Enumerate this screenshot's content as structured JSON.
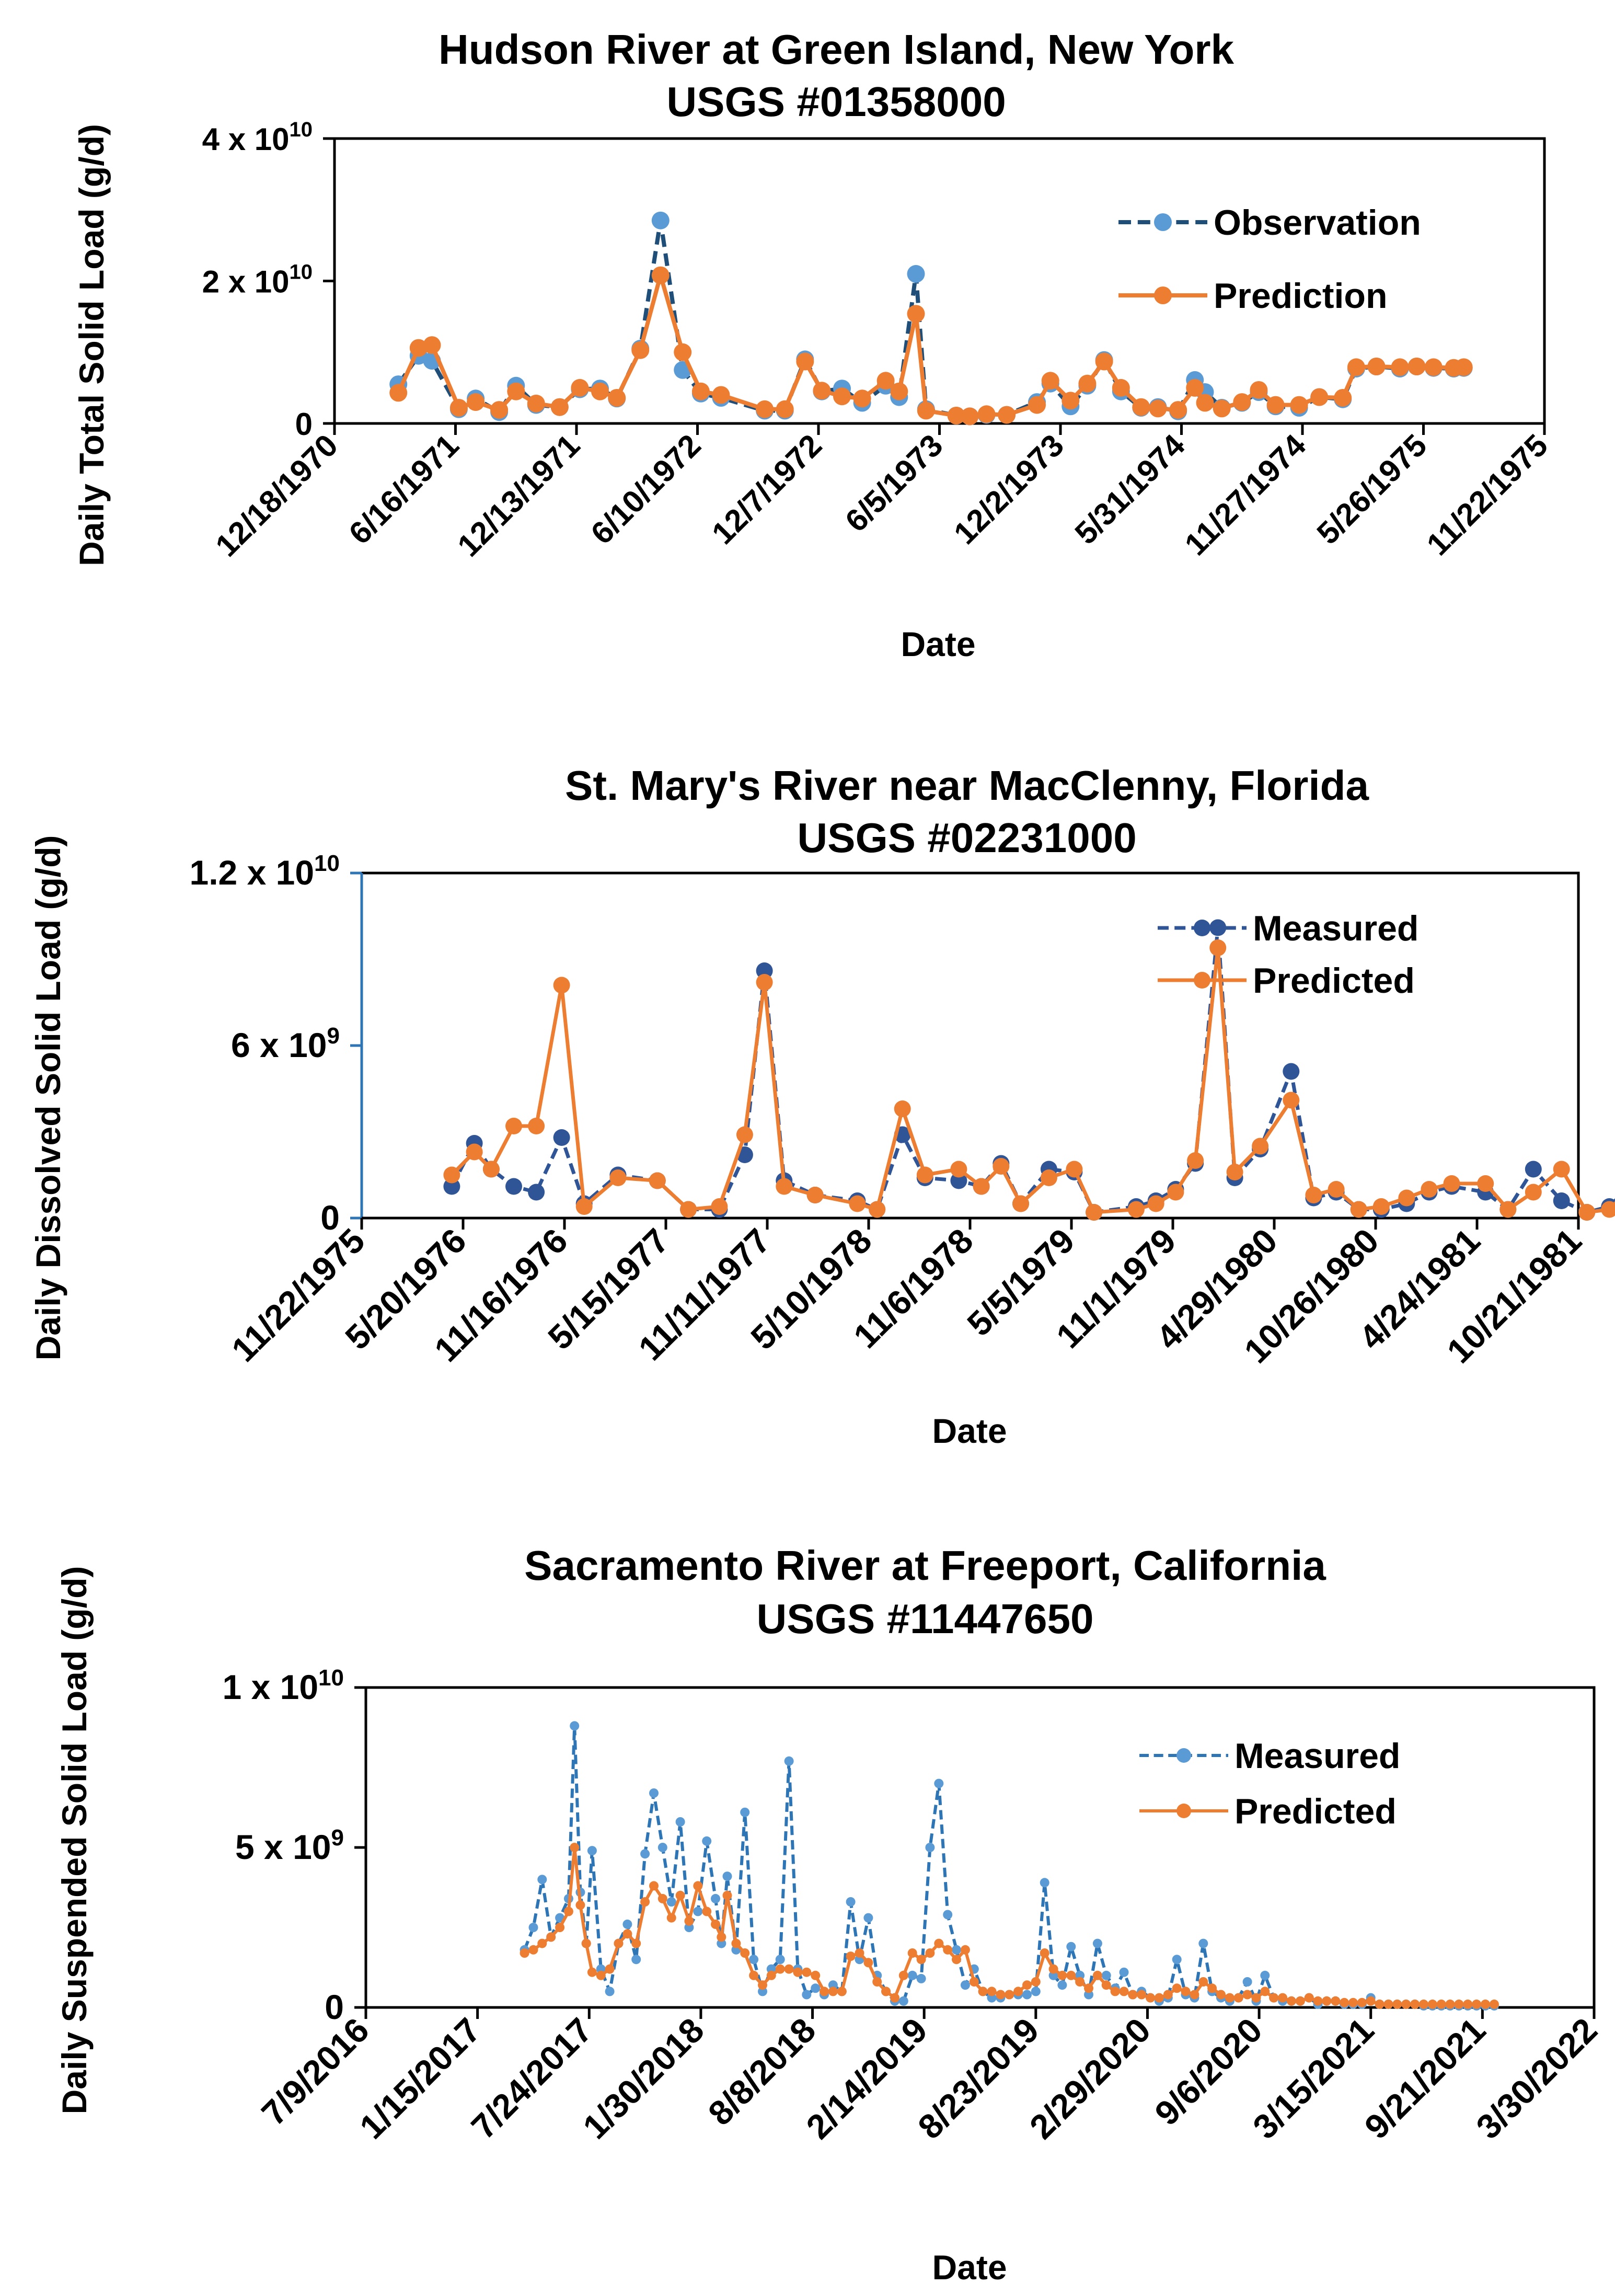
{
  "colors": {
    "observed_dark": "#1F4E79",
    "observed_light": "#5B9BD5",
    "measured_dark": "#2F5597",
    "predicted": "#ED7D31"
  },
  "chart_data": [
    {
      "type": "line",
      "title": "Hudson River at Green Island, New York",
      "subtitle": "USGS #01358000",
      "xlabel": "Date",
      "ylabel": "Daily Total Solid Load (g/d)",
      "xlim": [
        0,
        1800
      ],
      "x_tick_values": [
        0,
        180,
        360,
        540,
        720,
        900,
        1080,
        1260,
        1440,
        1620,
        1800
      ],
      "x_tick_labels": [
        "12/18/1970",
        "6/16/1971",
        "12/13/1971",
        "6/10/1972",
        "12/7/1972",
        "6/5/1973",
        "12/2/1973",
        "5/31/1974",
        "11/27/1974",
        "5/26/1975",
        "11/22/1975"
      ],
      "ylim": [
        0,
        40000000000
      ],
      "y_ticks": [
        {
          "value": 0,
          "base": "0",
          "exp": ""
        },
        {
          "value": 20000000000,
          "base": "2 x 10",
          "exp": "10"
        },
        {
          "value": 40000000000,
          "base": "4 x 10",
          "exp": "10"
        }
      ],
      "legend": {
        "position": "top-right",
        "entries": [
          "Observation",
          "Prediction"
        ]
      },
      "x": [
        95,
        125,
        145,
        185,
        210,
        245,
        270,
        300,
        335,
        365,
        395,
        420,
        455,
        485,
        518,
        545,
        575,
        640,
        670,
        700,
        725,
        755,
        785,
        820,
        840,
        865,
        880,
        925,
        945,
        970,
        1000,
        1045,
        1065,
        1095,
        1120,
        1145,
        1170,
        1200,
        1225,
        1255,
        1280,
        1295,
        1320,
        1350,
        1375,
        1400,
        1435,
        1465,
        1500,
        1520,
        1550,
        1585,
        1610,
        1635,
        1665,
        1680
      ],
      "series": [
        {
          "name": "Observation",
          "color": "#5B9BD5",
          "line_color": "#1F4E79",
          "dash": true,
          "values": [
            5500000000,
            9500000000,
            8800000000,
            2000000000,
            3500000000,
            1600000000,
            5300000000,
            2600000000,
            2300000000,
            4800000000,
            4900000000,
            3500000000,
            10500000000,
            28500000000,
            7500000000,
            4200000000,
            3600000000,
            1800000000,
            1800000000,
            9000000000,
            4500000000,
            4900000000,
            2900000000,
            5300000000,
            3700000000,
            21000000000,
            2000000000,
            1100000000,
            1000000000,
            1200000000,
            1200000000,
            3000000000,
            5600000000,
            2400000000,
            5300000000,
            8900000000,
            4500000000,
            2200000000,
            2300000000,
            1700000000,
            6100000000,
            4400000000,
            2200000000,
            2900000000,
            4400000000,
            2400000000,
            2200000000,
            3700000000,
            3400000000,
            7700000000,
            8000000000,
            7700000000,
            8000000000,
            7800000000,
            7700000000,
            7800000000
          ]
        },
        {
          "name": "Prediction",
          "color": "#ED7D31",
          "line_color": "#ED7D31",
          "dash": false,
          "values": [
            4300000000,
            10600000000,
            11000000000,
            2200000000,
            3000000000,
            1900000000,
            4500000000,
            2800000000,
            2300000000,
            5000000000,
            4500000000,
            3600000000,
            10300000000,
            20800000000,
            10000000000,
            4500000000,
            4000000000,
            2000000000,
            2000000000,
            8700000000,
            4600000000,
            3800000000,
            3500000000,
            6000000000,
            4500000000,
            15400000000,
            1800000000,
            1100000000,
            1000000000,
            1300000000,
            1200000000,
            2600000000,
            6000000000,
            3200000000,
            5600000000,
            8700000000,
            5000000000,
            2300000000,
            2100000000,
            1900000000,
            5000000000,
            2900000000,
            2100000000,
            3000000000,
            4700000000,
            2600000000,
            2600000000,
            3700000000,
            3600000000,
            7900000000,
            8000000000,
            7900000000,
            8000000000,
            7900000000,
            7800000000,
            7900000000
          ]
        }
      ]
    },
    {
      "type": "line",
      "title": "St. Mary's River near MacClenny, Florida",
      "subtitle": "USGS #02231000",
      "xlabel": "Date",
      "ylabel": "Daily Dissolved Solid Load (g/d)",
      "xlim": [
        0,
        2160
      ],
      "x_tick_values": [
        0,
        180,
        360,
        540,
        720,
        900,
        1080,
        1260,
        1440,
        1620,
        1800,
        1980,
        2160
      ],
      "x_tick_labels": [
        "11/22/1975",
        "5/20/1976",
        "11/16/1976",
        "5/15/1977",
        "11/11/1977",
        "5/10/1978",
        "11/6/1978",
        "5/5/1979",
        "11/1/1979",
        "4/29/1980",
        "10/26/1980",
        "4/24/1981",
        "10/21/1981"
      ],
      "ylim": [
        0,
        12000000000
      ],
      "y_ticks": [
        {
          "value": 0,
          "base": "0",
          "exp": ""
        },
        {
          "value": 6000000000,
          "base": "6 x 10",
          "exp": "9"
        },
        {
          "value": 12000000000,
          "base": "1.2 x 10",
          "exp": "10"
        }
      ],
      "legend": {
        "position": "top-right",
        "entries": [
          "Measured",
          "Predicted"
        ]
      },
      "x": [
        160,
        200,
        230,
        270,
        310,
        355,
        395,
        455,
        525,
        580,
        635,
        680,
        715,
        750,
        805,
        880,
        915,
        960,
        1000,
        1060,
        1100,
        1135,
        1170,
        1220,
        1265,
        1300,
        1375,
        1410,
        1445,
        1480,
        1520,
        1550,
        1595,
        1650,
        1690,
        1730,
        1770,
        1810,
        1855,
        1895,
        1935,
        1995,
        2035,
        2080,
        2130,
        2175,
        2215,
        2245
      ],
      "series": [
        {
          "name": "Measured",
          "color": "#2F5597",
          "line_color": "#2F5597",
          "dash": true,
          "values": [
            1100000000,
            2600000000,
            1700000000,
            1100000000,
            900000000,
            2800000000,
            500000000,
            1500000000,
            1300000000,
            300000000,
            300000000,
            2200000000,
            8600000000,
            1300000000,
            800000000,
            600000000,
            300000000,
            2900000000,
            1400000000,
            1300000000,
            1100000000,
            1900000000,
            500000000,
            1700000000,
            1600000000,
            200000000,
            400000000,
            600000000,
            1000000000,
            1900000000,
            10100000000,
            1400000000,
            2400000000,
            5100000000,
            700000000,
            900000000,
            300000000,
            300000000,
            500000000,
            900000000,
            1100000000,
            900000000,
            300000000,
            1700000000,
            600000000,
            200000000,
            400000000,
            1000000000
          ]
        },
        {
          "name": "Predicted",
          "color": "#ED7D31",
          "line_color": "#ED7D31",
          "dash": false,
          "values": [
            1500000000,
            2300000000,
            1700000000,
            3200000000,
            3200000000,
            8100000000,
            400000000,
            1400000000,
            1300000000,
            300000000,
            400000000,
            2900000000,
            8200000000,
            1100000000,
            800000000,
            500000000,
            300000000,
            3800000000,
            1500000000,
            1700000000,
            1100000000,
            1800000000,
            500000000,
            1400000000,
            1700000000,
            200000000,
            300000000,
            500000000,
            900000000,
            2000000000,
            9400000000,
            1600000000,
            2500000000,
            4100000000,
            800000000,
            1000000000,
            300000000,
            400000000,
            700000000,
            1000000000,
            1200000000,
            1200000000,
            300000000,
            900000000,
            1700000000,
            200000000,
            300000000,
            900000000
          ]
        }
      ]
    },
    {
      "type": "line",
      "title": "Sacramento River at Freeport,  California",
      "subtitle": "USGS #11447650",
      "xlabel": "Date",
      "ylabel": "Daily Suspended Solid Load (g/d)",
      "xlim": [
        0,
        2090
      ],
      "x_tick_values": [
        0,
        190,
        380,
        570,
        760,
        950,
        1140,
        1330,
        1520,
        1710,
        1900,
        2090
      ],
      "x_tick_labels": [
        "7/9/2016",
        "1/15/2017",
        "7/24/2017",
        "1/30/2018",
        "8/8/2018",
        "2/14/2019",
        "8/23/2019",
        "2/29/2020",
        "9/6/2020",
        "3/15/2021",
        "9/21/2021",
        "3/30/2022"
      ],
      "ylim": [
        0,
        10000000000
      ],
      "y_ticks": [
        {
          "value": 0,
          "base": "0",
          "exp": ""
        },
        {
          "value": 5000000000,
          "base": "5 x 10",
          "exp": "9"
        },
        {
          "value": 10000000000,
          "base": "1 x 10",
          "exp": "10"
        }
      ],
      "legend": {
        "position": "top-right",
        "entries": [
          "Measured",
          "Predicted"
        ]
      },
      "x": [
        270,
        285,
        300,
        315,
        330,
        345,
        355,
        365,
        375,
        385,
        400,
        415,
        430,
        445,
        460,
        475,
        490,
        505,
        520,
        535,
        550,
        565,
        580,
        595,
        605,
        615,
        630,
        645,
        660,
        675,
        690,
        705,
        720,
        735,
        750,
        765,
        780,
        795,
        810,
        825,
        840,
        855,
        870,
        885,
        900,
        915,
        930,
        945,
        960,
        975,
        990,
        1005,
        1020,
        1035,
        1050,
        1065,
        1080,
        1095,
        1110,
        1125,
        1140,
        1155,
        1170,
        1185,
        1200,
        1215,
        1230,
        1245,
        1260,
        1275,
        1290,
        1305,
        1320,
        1335,
        1350,
        1365,
        1380,
        1395,
        1410,
        1425,
        1440,
        1455,
        1470,
        1485,
        1500,
        1515,
        1530,
        1545,
        1560,
        1575,
        1590,
        1605,
        1620,
        1635,
        1650,
        1665,
        1680,
        1695,
        1710,
        1725,
        1740,
        1755,
        1770,
        1785,
        1800,
        1815,
        1830,
        1845,
        1860,
        1875,
        1890,
        1905,
        1920
      ],
      "series": [
        {
          "name": "Measured",
          "color": "#5B9BD5",
          "line_color": "#2E75B6",
          "dash": true,
          "values": [
            1800000000,
            2500000000,
            4000000000,
            2200000000,
            2800000000,
            3400000000,
            8800000000,
            3600000000,
            2000000000,
            4900000000,
            1200000000,
            500000000,
            2000000000,
            2600000000,
            1500000000,
            4800000000,
            6700000000,
            5000000000,
            3300000000,
            5800000000,
            2500000000,
            3000000000,
            5200000000,
            3400000000,
            2000000000,
            4100000000,
            1800000000,
            6100000000,
            1500000000,
            500000000,
            1200000000,
            1500000000,
            7700000000,
            1200000000,
            400000000,
            600000000,
            400000000,
            700000000,
            500000000,
            3300000000,
            1500000000,
            2800000000,
            1000000000,
            500000000,
            200000000,
            200000000,
            1000000000,
            900000000,
            5000000000,
            7000000000,
            2900000000,
            1800000000,
            700000000,
            1200000000,
            500000000,
            300000000,
            300000000,
            400000000,
            400000000,
            400000000,
            500000000,
            3900000000,
            1000000000,
            700000000,
            1900000000,
            1000000000,
            400000000,
            2000000000,
            1000000000,
            600000000,
            1100000000,
            400000000,
            500000000,
            300000000,
            200000000,
            300000000,
            1500000000,
            400000000,
            300000000,
            2000000000,
            500000000,
            300000000,
            200000000,
            300000000,
            800000000,
            200000000,
            1000000000,
            300000000,
            200000000,
            200000000,
            200000000,
            300000000,
            100000000,
            200000000,
            200000000,
            100000000,
            100000000,
            100000000,
            300000000,
            100000000,
            100000000,
            100000000,
            100000000,
            100000000,
            50000000,
            50000000,
            50000000,
            50000000,
            50000000,
            50000000,
            50000000,
            50000000,
            50000000
          ]
        },
        {
          "name": "Predicted",
          "color": "#ED7D31",
          "line_color": "#ED7D31",
          "dash": false,
          "values": [
            1700000000,
            1800000000,
            2000000000,
            2200000000,
            2500000000,
            3000000000,
            5000000000,
            3200000000,
            2000000000,
            1100000000,
            1000000000,
            1200000000,
            2000000000,
            2300000000,
            2000000000,
            3300000000,
            3800000000,
            3400000000,
            2800000000,
            3500000000,
            2700000000,
            3800000000,
            3000000000,
            2600000000,
            2200000000,
            3500000000,
            2000000000,
            1700000000,
            1000000000,
            700000000,
            1000000000,
            1200000000,
            1200000000,
            1100000000,
            1100000000,
            1000000000,
            500000000,
            500000000,
            500000000,
            1600000000,
            1700000000,
            1400000000,
            800000000,
            500000000,
            300000000,
            1000000000,
            1700000000,
            1500000000,
            1700000000,
            2000000000,
            1800000000,
            1500000000,
            1800000000,
            800000000,
            500000000,
            500000000,
            400000000,
            400000000,
            500000000,
            700000000,
            800000000,
            1700000000,
            1200000000,
            1000000000,
            1000000000,
            800000000,
            600000000,
            1000000000,
            700000000,
            500000000,
            500000000,
            400000000,
            400000000,
            300000000,
            300000000,
            400000000,
            600000000,
            500000000,
            400000000,
            800000000,
            600000000,
            400000000,
            300000000,
            300000000,
            400000000,
            300000000,
            500000000,
            300000000,
            300000000,
            200000000,
            200000000,
            300000000,
            200000000,
            200000000,
            200000000,
            150000000,
            150000000,
            150000000,
            200000000,
            100000000,
            100000000,
            100000000,
            100000000,
            100000000,
            100000000,
            100000000,
            100000000,
            100000000,
            100000000,
            100000000,
            100000000,
            100000000,
            100000000
          ]
        }
      ]
    }
  ]
}
